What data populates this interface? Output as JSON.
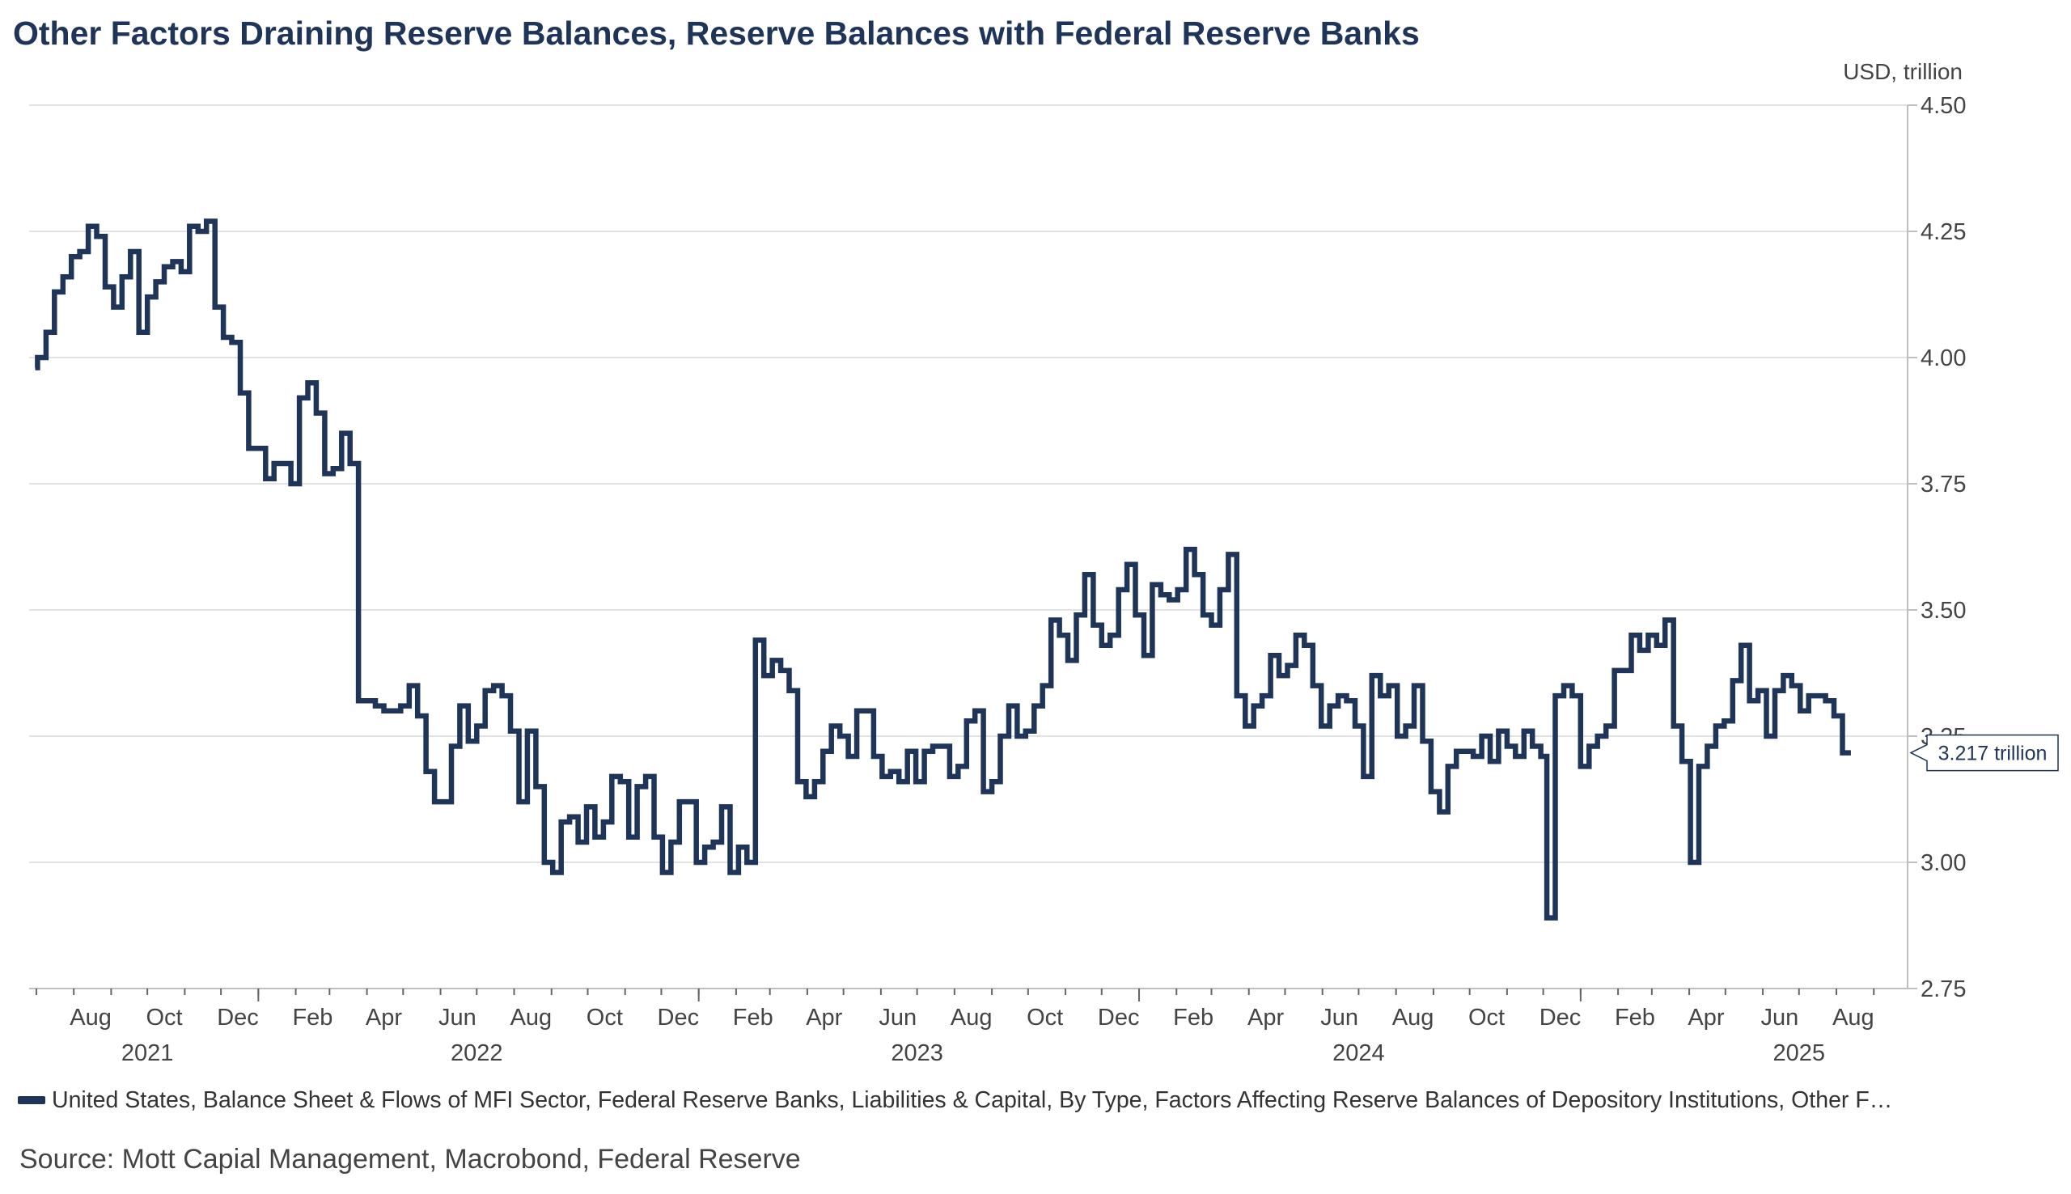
{
  "chart_data": {
    "type": "line",
    "title": "Other Factors Draining Reserve Balances, Reserve Balances with Federal Reserve Banks",
    "ylabel": "USD, trillion",
    "ylim": [
      2.75,
      4.5
    ],
    "yticks": [
      "2.75",
      "3.00",
      "3.25",
      "3.50",
      "3.75",
      "4.00",
      "4.25",
      "4.50"
    ],
    "xlim": [
      "2021-06-25",
      "2025-09-29"
    ],
    "month_ticks": [
      {
        "date": "2021-08-01",
        "label": "Aug"
      },
      {
        "date": "2021-10-01",
        "label": "Oct"
      },
      {
        "date": "2021-12-01",
        "label": "Dec"
      },
      {
        "date": "2022-02-01",
        "label": "Feb"
      },
      {
        "date": "2022-04-01",
        "label": "Apr"
      },
      {
        "date": "2022-06-01",
        "label": "Jun"
      },
      {
        "date": "2022-08-01",
        "label": "Aug"
      },
      {
        "date": "2022-10-01",
        "label": "Oct"
      },
      {
        "date": "2022-12-01",
        "label": "Dec"
      },
      {
        "date": "2023-02-01",
        "label": "Feb"
      },
      {
        "date": "2023-04-01",
        "label": "Apr"
      },
      {
        "date": "2023-06-01",
        "label": "Jun"
      },
      {
        "date": "2023-08-01",
        "label": "Aug"
      },
      {
        "date": "2023-10-01",
        "label": "Oct"
      },
      {
        "date": "2023-12-01",
        "label": "Dec"
      },
      {
        "date": "2024-02-01",
        "label": "Feb"
      },
      {
        "date": "2024-04-01",
        "label": "Apr"
      },
      {
        "date": "2024-06-01",
        "label": "Jun"
      },
      {
        "date": "2024-08-01",
        "label": "Aug"
      },
      {
        "date": "2024-10-01",
        "label": "Oct"
      },
      {
        "date": "2024-12-01",
        "label": "Dec"
      },
      {
        "date": "2025-02-01",
        "label": "Feb"
      },
      {
        "date": "2025-04-01",
        "label": "Apr"
      },
      {
        "date": "2025-06-01",
        "label": "Jun"
      },
      {
        "date": "2025-08-01",
        "label": "Aug"
      }
    ],
    "year_labels": [
      {
        "date": "2021-10-01",
        "label": "2021"
      },
      {
        "date": "2022-07-01",
        "label": "2022"
      },
      {
        "date": "2023-07-01",
        "label": "2023"
      },
      {
        "date": "2024-07-01",
        "label": "2024"
      },
      {
        "date": "2025-07-01",
        "label": "2025"
      }
    ],
    "year_boundaries": [
      "2022-01-01",
      "2023-01-01",
      "2024-01-01",
      "2025-01-01"
    ],
    "legend_position": "bottom",
    "grid": true,
    "series": [
      {
        "name": "United States, Balance Sheet & Flows of MFI Sector, Federal Reserve Banks, Liabilities & Capital, By Type, Factors Affecting Reserve Balances of Depository Institutions, Other F…",
        "color": "#1f3459",
        "last_value_label": "3.217 trillion",
        "points": [
          [
            "2021-06-30",
            3.98
          ],
          [
            "2021-07-02",
            4.0
          ],
          [
            "2021-07-09",
            4.05
          ],
          [
            "2021-07-16",
            4.13
          ],
          [
            "2021-07-23",
            4.16
          ],
          [
            "2021-07-30",
            4.2
          ],
          [
            "2021-08-06",
            4.21
          ],
          [
            "2021-08-13",
            4.26
          ],
          [
            "2021-08-20",
            4.24
          ],
          [
            "2021-08-27",
            4.14
          ],
          [
            "2021-09-03",
            4.1
          ],
          [
            "2021-09-10",
            4.16
          ],
          [
            "2021-09-17",
            4.21
          ],
          [
            "2021-09-24",
            4.05
          ],
          [
            "2021-10-01",
            4.12
          ],
          [
            "2021-10-08",
            4.15
          ],
          [
            "2021-10-15",
            4.18
          ],
          [
            "2021-10-22",
            4.19
          ],
          [
            "2021-10-29",
            4.17
          ],
          [
            "2021-11-05",
            4.26
          ],
          [
            "2021-11-12",
            4.25
          ],
          [
            "2021-11-19",
            4.27
          ],
          [
            "2021-11-26",
            4.1
          ],
          [
            "2021-12-03",
            4.04
          ],
          [
            "2021-12-10",
            4.03
          ],
          [
            "2021-12-17",
            3.93
          ],
          [
            "2021-12-24",
            3.82
          ],
          [
            "2021-12-31",
            3.82
          ],
          [
            "2022-01-07",
            3.76
          ],
          [
            "2022-01-14",
            3.79
          ],
          [
            "2022-01-21",
            3.79
          ],
          [
            "2022-01-28",
            3.75
          ],
          [
            "2022-02-04",
            3.92
          ],
          [
            "2022-02-11",
            3.95
          ],
          [
            "2022-02-18",
            3.89
          ],
          [
            "2022-02-25",
            3.77
          ],
          [
            "2022-03-04",
            3.78
          ],
          [
            "2022-03-11",
            3.85
          ],
          [
            "2022-03-18",
            3.79
          ],
          [
            "2022-03-25",
            3.32
          ],
          [
            "2022-04-01",
            3.32
          ],
          [
            "2022-04-08",
            3.31
          ],
          [
            "2022-04-15",
            3.3
          ],
          [
            "2022-04-22",
            3.3
          ],
          [
            "2022-04-29",
            3.31
          ],
          [
            "2022-05-06",
            3.35
          ],
          [
            "2022-05-13",
            3.29
          ],
          [
            "2022-05-20",
            3.18
          ],
          [
            "2022-05-27",
            3.12
          ],
          [
            "2022-06-03",
            3.12
          ],
          [
            "2022-06-10",
            3.23
          ],
          [
            "2022-06-17",
            3.31
          ],
          [
            "2022-06-24",
            3.24
          ],
          [
            "2022-07-01",
            3.27
          ],
          [
            "2022-07-08",
            3.34
          ],
          [
            "2022-07-15",
            3.35
          ],
          [
            "2022-07-22",
            3.33
          ],
          [
            "2022-07-29",
            3.26
          ],
          [
            "2022-08-05",
            3.12
          ],
          [
            "2022-08-12",
            3.26
          ],
          [
            "2022-08-19",
            3.15
          ],
          [
            "2022-08-26",
            3.0
          ],
          [
            "2022-09-02",
            2.98
          ],
          [
            "2022-09-09",
            3.08
          ],
          [
            "2022-09-16",
            3.09
          ],
          [
            "2022-09-23",
            3.04
          ],
          [
            "2022-09-30",
            3.11
          ],
          [
            "2022-10-07",
            3.05
          ],
          [
            "2022-10-14",
            3.08
          ],
          [
            "2022-10-21",
            3.17
          ],
          [
            "2022-10-28",
            3.16
          ],
          [
            "2022-11-04",
            3.05
          ],
          [
            "2022-11-11",
            3.15
          ],
          [
            "2022-11-18",
            3.17
          ],
          [
            "2022-11-25",
            3.05
          ],
          [
            "2022-12-02",
            2.98
          ],
          [
            "2022-12-09",
            3.04
          ],
          [
            "2022-12-16",
            3.12
          ],
          [
            "2022-12-23",
            3.12
          ],
          [
            "2022-12-30",
            3.0
          ],
          [
            "2023-01-06",
            3.03
          ],
          [
            "2023-01-13",
            3.04
          ],
          [
            "2023-01-20",
            3.11
          ],
          [
            "2023-01-27",
            2.98
          ],
          [
            "2023-02-03",
            3.03
          ],
          [
            "2023-02-10",
            3.0
          ],
          [
            "2023-02-17",
            3.44
          ],
          [
            "2023-02-24",
            3.37
          ],
          [
            "2023-03-03",
            3.4
          ],
          [
            "2023-03-10",
            3.38
          ],
          [
            "2023-03-17",
            3.34
          ],
          [
            "2023-03-24",
            3.16
          ],
          [
            "2023-03-31",
            3.13
          ],
          [
            "2023-04-07",
            3.16
          ],
          [
            "2023-04-14",
            3.22
          ],
          [
            "2023-04-21",
            3.27
          ],
          [
            "2023-04-28",
            3.25
          ],
          [
            "2023-05-05",
            3.21
          ],
          [
            "2023-05-12",
            3.3
          ],
          [
            "2023-05-19",
            3.3
          ],
          [
            "2023-05-26",
            3.21
          ],
          [
            "2023-06-02",
            3.17
          ],
          [
            "2023-06-09",
            3.18
          ],
          [
            "2023-06-16",
            3.16
          ],
          [
            "2023-06-23",
            3.22
          ],
          [
            "2023-06-30",
            3.16
          ],
          [
            "2023-07-07",
            3.22
          ],
          [
            "2023-07-14",
            3.23
          ],
          [
            "2023-07-21",
            3.23
          ],
          [
            "2023-07-28",
            3.17
          ],
          [
            "2023-08-04",
            3.19
          ],
          [
            "2023-08-11",
            3.28
          ],
          [
            "2023-08-18",
            3.3
          ],
          [
            "2023-08-25",
            3.14
          ],
          [
            "2023-09-01",
            3.16
          ],
          [
            "2023-09-08",
            3.25
          ],
          [
            "2023-09-15",
            3.31
          ],
          [
            "2023-09-22",
            3.25
          ],
          [
            "2023-09-29",
            3.26
          ],
          [
            "2023-10-06",
            3.31
          ],
          [
            "2023-10-13",
            3.35
          ],
          [
            "2023-10-20",
            3.48
          ],
          [
            "2023-10-27",
            3.45
          ],
          [
            "2023-11-03",
            3.4
          ],
          [
            "2023-11-10",
            3.49
          ],
          [
            "2023-11-17",
            3.57
          ],
          [
            "2023-11-24",
            3.47
          ],
          [
            "2023-12-01",
            3.43
          ],
          [
            "2023-12-08",
            3.45
          ],
          [
            "2023-12-15",
            3.54
          ],
          [
            "2023-12-22",
            3.59
          ],
          [
            "2023-12-29",
            3.49
          ],
          [
            "2024-01-05",
            3.41
          ],
          [
            "2024-01-12",
            3.55
          ],
          [
            "2024-01-19",
            3.53
          ],
          [
            "2024-01-26",
            3.52
          ],
          [
            "2024-02-02",
            3.54
          ],
          [
            "2024-02-09",
            3.62
          ],
          [
            "2024-02-16",
            3.57
          ],
          [
            "2024-02-23",
            3.49
          ],
          [
            "2024-03-01",
            3.47
          ],
          [
            "2024-03-08",
            3.54
          ],
          [
            "2024-03-15",
            3.61
          ],
          [
            "2024-03-22",
            3.33
          ],
          [
            "2024-03-29",
            3.27
          ],
          [
            "2024-04-05",
            3.31
          ],
          [
            "2024-04-12",
            3.33
          ],
          [
            "2024-04-19",
            3.41
          ],
          [
            "2024-04-26",
            3.37
          ],
          [
            "2024-05-03",
            3.39
          ],
          [
            "2024-05-10",
            3.45
          ],
          [
            "2024-05-17",
            3.43
          ],
          [
            "2024-05-24",
            3.35
          ],
          [
            "2024-05-31",
            3.27
          ],
          [
            "2024-06-07",
            3.31
          ],
          [
            "2024-06-14",
            3.33
          ],
          [
            "2024-06-21",
            3.32
          ],
          [
            "2024-06-28",
            3.27
          ],
          [
            "2024-07-05",
            3.17
          ],
          [
            "2024-07-12",
            3.37
          ],
          [
            "2024-07-19",
            3.33
          ],
          [
            "2024-07-26",
            3.35
          ],
          [
            "2024-08-02",
            3.25
          ],
          [
            "2024-08-09",
            3.27
          ],
          [
            "2024-08-16",
            3.35
          ],
          [
            "2024-08-23",
            3.24
          ],
          [
            "2024-08-30",
            3.14
          ],
          [
            "2024-09-06",
            3.1
          ],
          [
            "2024-09-13",
            3.19
          ],
          [
            "2024-09-20",
            3.22
          ],
          [
            "2024-09-27",
            3.22
          ],
          [
            "2024-10-04",
            3.21
          ],
          [
            "2024-10-11",
            3.25
          ],
          [
            "2024-10-18",
            3.2
          ],
          [
            "2024-10-25",
            3.26
          ],
          [
            "2024-11-01",
            3.23
          ],
          [
            "2024-11-08",
            3.21
          ],
          [
            "2024-11-15",
            3.26
          ],
          [
            "2024-11-22",
            3.23
          ],
          [
            "2024-11-29",
            3.21
          ],
          [
            "2024-12-04",
            2.89
          ],
          [
            "2024-12-11",
            3.33
          ],
          [
            "2024-12-18",
            3.35
          ],
          [
            "2024-12-25",
            3.33
          ],
          [
            "2025-01-01",
            3.19
          ],
          [
            "2025-01-08",
            3.23
          ],
          [
            "2025-01-15",
            3.25
          ],
          [
            "2025-01-22",
            3.27
          ],
          [
            "2025-01-29",
            3.38
          ],
          [
            "2025-02-05",
            3.38
          ],
          [
            "2025-02-12",
            3.45
          ],
          [
            "2025-02-19",
            3.42
          ],
          [
            "2025-02-26",
            3.45
          ],
          [
            "2025-03-05",
            3.43
          ],
          [
            "2025-03-12",
            3.48
          ],
          [
            "2025-03-19",
            3.27
          ],
          [
            "2025-03-26",
            3.2
          ],
          [
            "2025-04-02",
            3.0
          ],
          [
            "2025-04-09",
            3.19
          ],
          [
            "2025-04-16",
            3.23
          ],
          [
            "2025-04-23",
            3.27
          ],
          [
            "2025-04-30",
            3.28
          ],
          [
            "2025-05-07",
            3.36
          ],
          [
            "2025-05-14",
            3.43
          ],
          [
            "2025-05-21",
            3.32
          ],
          [
            "2025-05-28",
            3.34
          ],
          [
            "2025-06-04",
            3.25
          ],
          [
            "2025-06-11",
            3.34
          ],
          [
            "2025-06-18",
            3.37
          ],
          [
            "2025-06-25",
            3.35
          ],
          [
            "2025-07-02",
            3.3
          ],
          [
            "2025-07-09",
            3.33
          ],
          [
            "2025-07-16",
            3.33
          ],
          [
            "2025-07-23",
            3.32
          ],
          [
            "2025-07-30",
            3.29
          ],
          [
            "2025-08-06",
            3.217
          ],
          [
            "2025-08-13",
            3.217
          ]
        ]
      }
    ]
  },
  "source": "Source: Mott Capial Management, Macrobond, Federal Reserve"
}
